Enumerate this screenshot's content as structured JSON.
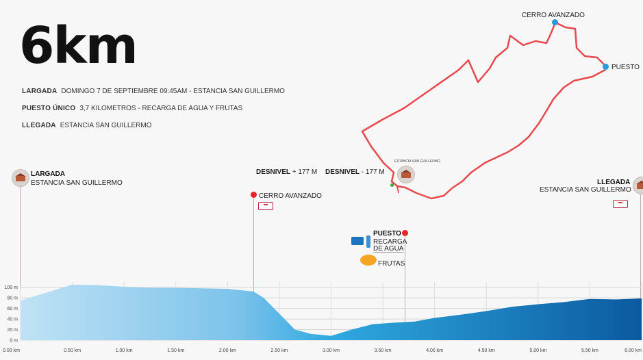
{
  "title": "6km",
  "info": [
    {
      "label": "LARGADA",
      "text": "DOMINGO 7 DE SEPTIEMBRE 09:45AM - ESTANCIA SAN GUILLERMO"
    },
    {
      "label": "PUESTO ÚNICO",
      "text": "3,7 KILOMETROS - RECARGA DE AGUA Y FRUTAS"
    },
    {
      "label": "LLEGADA",
      "text": "ESTANCIA SAN GUILLERMO"
    }
  ],
  "map": {
    "cerro_label": "CERRO AVANZADO",
    "puesto_label": "PUESTO",
    "estancia_label": "ESTANCIA SAN GUILLERMO",
    "route_color": "#e8484c"
  },
  "profile": {
    "start_title": "LARGADA",
    "start_place": "ESTANCIA SAN GUILLERMO",
    "finish_title": "LLEGADA",
    "finish_place": "ESTANCIA SAN GUILLERMO",
    "desnivel_up_label": "DESNIVEL",
    "desnivel_up_value": "+ 177 M",
    "desnivel_down_label": "DESNIVEL",
    "desnivel_down_value": "- 177 M",
    "cerro_label": "CERRO AVANZADO",
    "puesto_title": "PUESTO",
    "puesto_line1": "RECARGA",
    "puesto_line2": "DE AGUA",
    "frutas_label": "FRUTAS",
    "accent_red": "#e8232a"
  },
  "chart_data": {
    "type": "area",
    "x": [
      0,
      0.25,
      0.5,
      0.75,
      1.0,
      1.25,
      1.5,
      1.75,
      2.0,
      2.25,
      2.35,
      2.5,
      2.65,
      2.8,
      3.0,
      3.2,
      3.4,
      3.6,
      3.8,
      4.0,
      4.25,
      4.5,
      4.75,
      5.0,
      5.25,
      5.5,
      5.75,
      6.0
    ],
    "y": [
      75,
      90,
      105,
      104,
      101,
      99,
      99,
      98,
      97,
      92,
      80,
      50,
      20,
      12,
      8,
      20,
      30,
      33,
      35,
      42,
      48,
      55,
      63,
      68,
      72,
      78,
      77,
      79
    ],
    "x_tick_labels": [
      "0.00 km",
      "0.50 km",
      "1.00 km",
      "1.50 km",
      "2.00 km",
      "2.50 km",
      "3.00 km",
      "3.50 km",
      "4.00 km",
      "4.50 km",
      "5.00 km",
      "5.50 km",
      "6.00 km"
    ],
    "x_ticks": [
      0,
      0.5,
      1.0,
      1.5,
      2.0,
      2.5,
      3.0,
      3.5,
      4.0,
      4.5,
      5.0,
      5.5,
      6.0
    ],
    "y_tick_labels": [
      "0 m",
      "20 m",
      "40 m",
      "60 m",
      "80 m",
      "100 m"
    ],
    "y_ticks": [
      0,
      20,
      40,
      60,
      80,
      100
    ],
    "xlim": [
      0,
      6
    ],
    "ylim": [
      0,
      110
    ],
    "grid": true,
    "markers": {
      "cerro_km": 2.25,
      "puesto_km": 3.7
    },
    "fill_color_start": "#bfe2f5",
    "fill_color_end": "#0b5aa0"
  }
}
